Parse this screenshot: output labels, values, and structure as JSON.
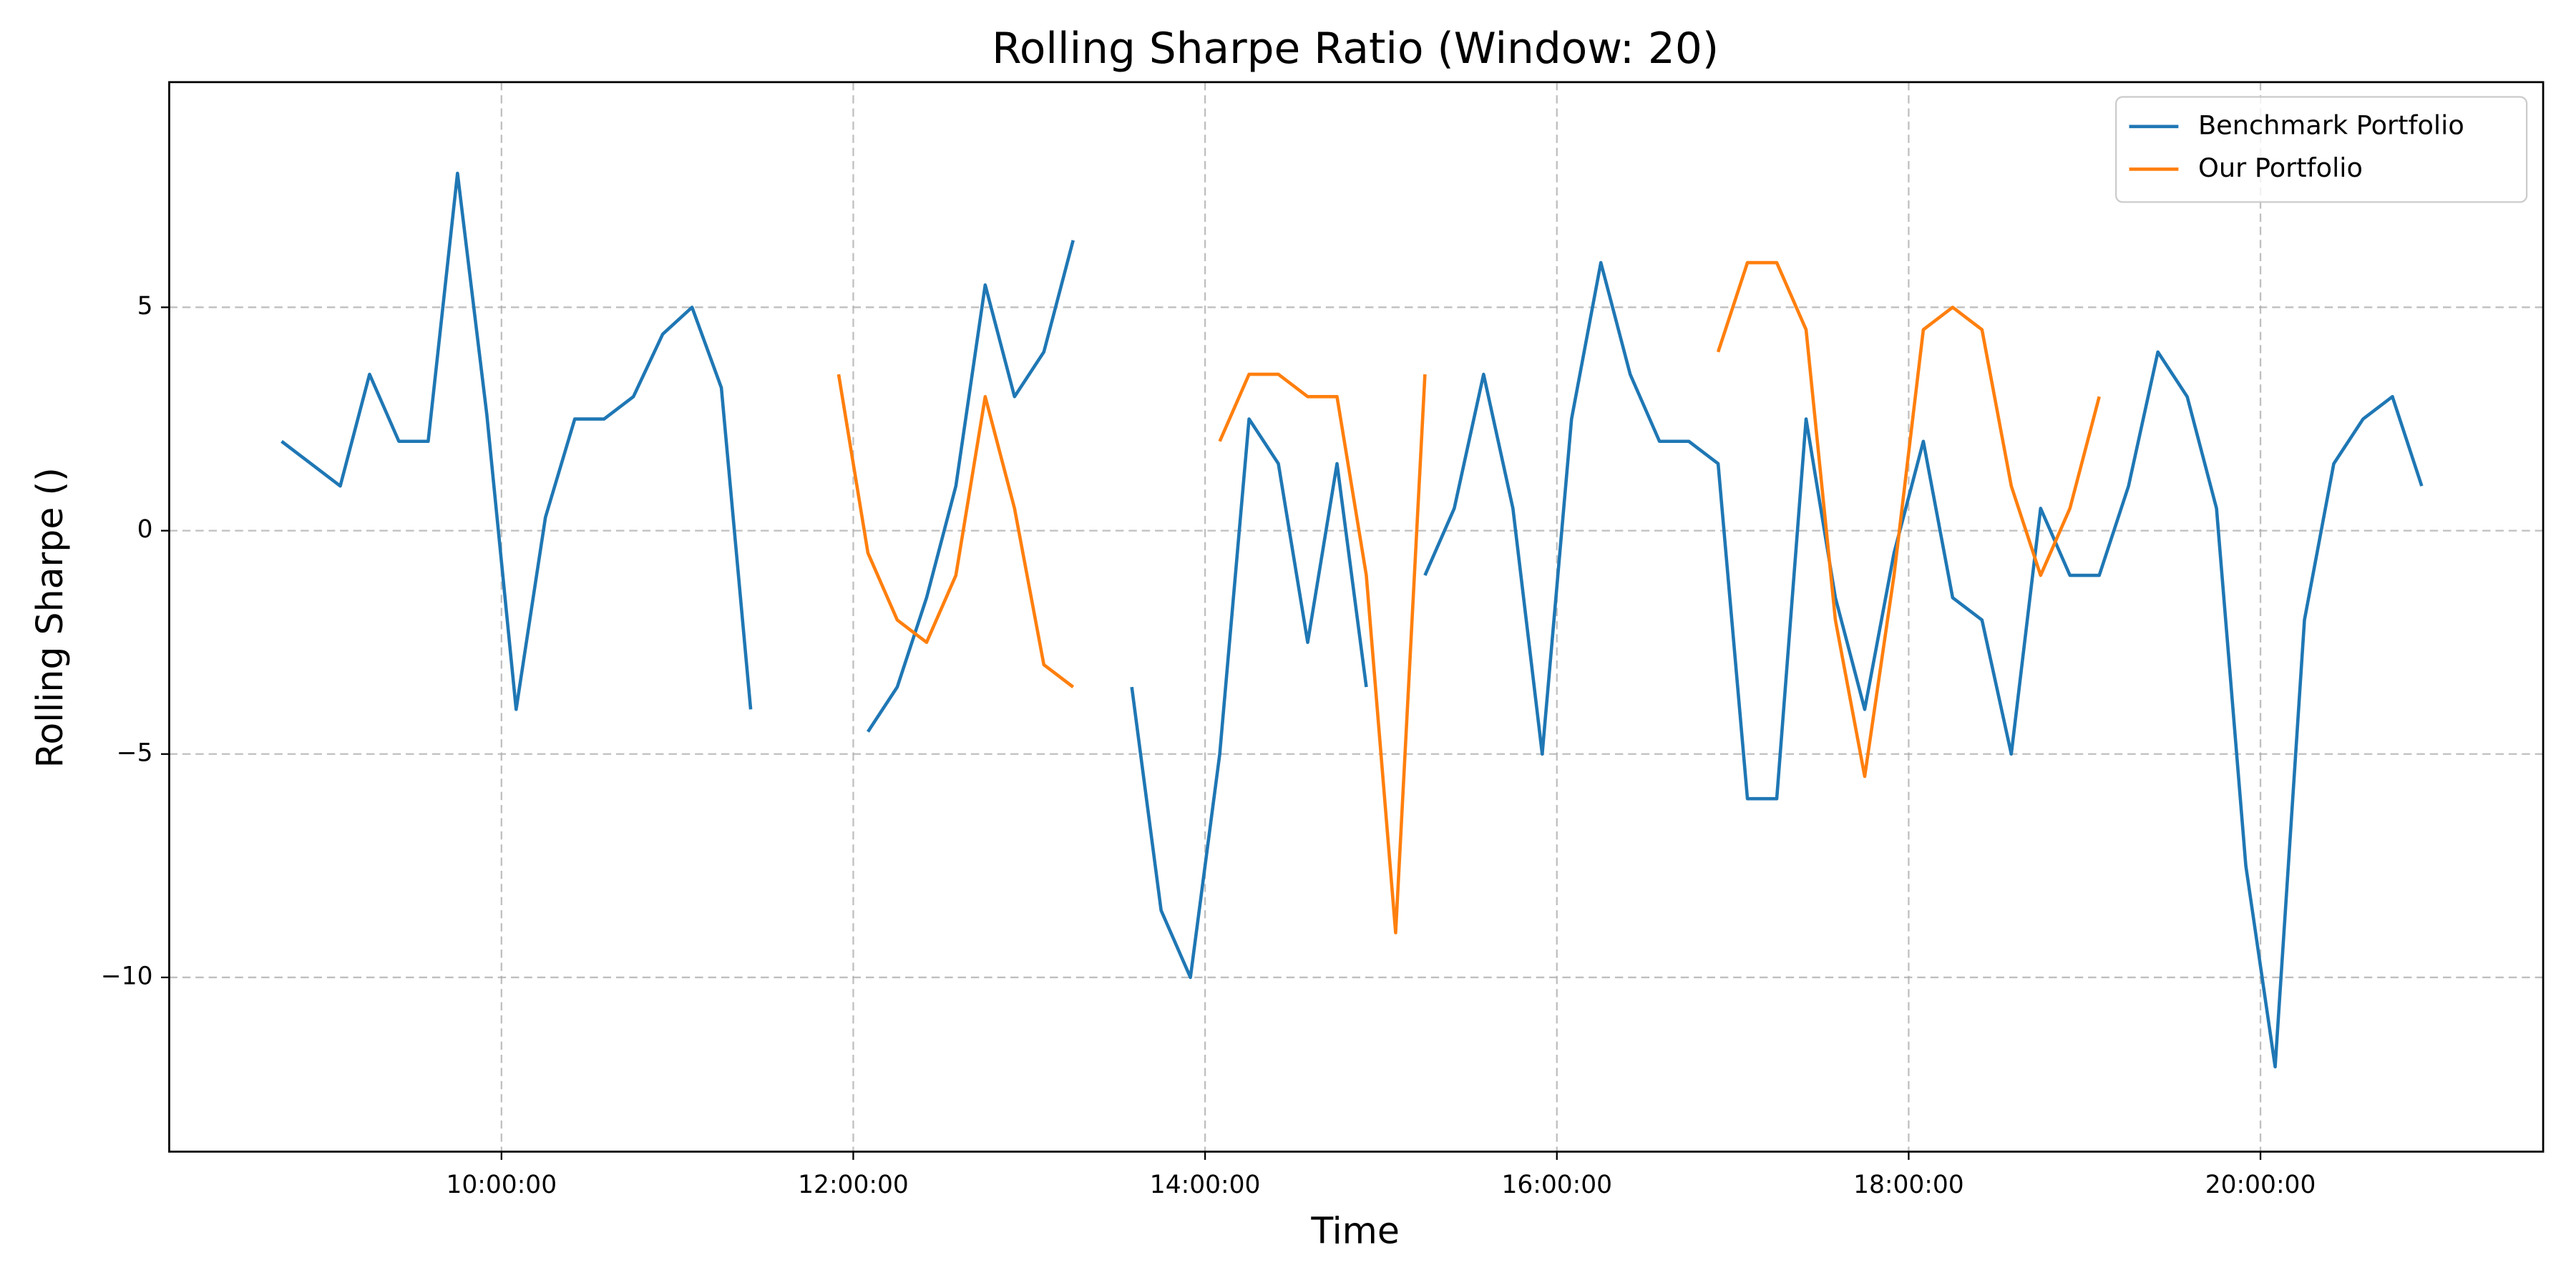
{
  "chart_data": {
    "type": "line",
    "title": "Rolling Sharpe Ratio (Window: 20)",
    "x_label": "Time",
    "y_label": "Rolling Sharpe ()",
    "x": [
      "08:45:00",
      "08:55:00",
      "09:05:00",
      "09:15:00",
      "09:25:00",
      "09:35:00",
      "09:45:00",
      "09:55:00",
      "10:05:00",
      "10:15:00",
      "10:25:00",
      "10:35:00",
      "10:45:00",
      "10:55:00",
      "11:05:00",
      "11:15:00",
      "11:25:00",
      "11:35:00",
      "11:45:00",
      "11:55:00",
      "12:05:00",
      "12:15:00",
      "12:25:00",
      "12:35:00",
      "12:45:00",
      "12:55:00",
      "13:05:00",
      "13:15:00",
      "13:25:00",
      "13:35:00",
      "13:45:00",
      "13:55:00",
      "14:05:00",
      "14:15:00",
      "14:25:00",
      "14:35:00",
      "14:45:00",
      "14:55:00",
      "15:05:00",
      "15:15:00",
      "15:25:00",
      "15:35:00",
      "15:45:00",
      "15:55:00",
      "16:05:00",
      "16:15:00",
      "16:25:00",
      "16:35:00",
      "16:45:00",
      "16:55:00",
      "17:05:00",
      "17:15:00",
      "17:25:00",
      "17:35:00",
      "17:45:00",
      "17:55:00",
      "18:05:00",
      "18:15:00",
      "18:25:00",
      "18:35:00",
      "18:45:00",
      "18:55:00",
      "19:05:00",
      "19:15:00",
      "19:25:00",
      "19:35:00",
      "19:45:00",
      "19:55:00",
      "20:05:00",
      "20:15:00",
      "20:25:00",
      "20:35:00",
      "20:45:00",
      "20:55:00"
    ],
    "series": [
      {
        "name": "Benchmark Portfolio",
        "color": "#1f77b4",
        "values": [
          2.0,
          1.5,
          1.0,
          3.5,
          2.0,
          2.0,
          8.0,
          2.6,
          -4,
          0.3,
          2.5,
          2.5,
          3.0,
          4.4,
          5.0,
          3.2,
          -4.0,
          null,
          null,
          null,
          -4.5,
          -3.5,
          -1.5,
          1.0,
          5.5,
          3.0,
          4.0,
          6.5,
          null,
          -3.5,
          -8.5,
          -10,
          -5,
          2.5,
          1.5,
          -2.5,
          1.5,
          -3.5,
          null,
          -1.0,
          0.5,
          3.5,
          0.5,
          -5.0,
          2.5,
          6.0,
          3.5,
          2.0,
          2.0,
          1.5,
          -6.0,
          -6.0,
          2.5,
          -1.5,
          -4.0,
          -0.5,
          2.0,
          -1.5,
          -2.0,
          -5.0,
          0.5,
          -1.0,
          -1.0,
          1.0,
          4.0,
          3.0,
          0.5,
          -7.5,
          -12.0,
          -2.0,
          1.5,
          2.5,
          3.0,
          1.0
        ]
      },
      {
        "name": "Our Portfolio",
        "color": "#ff7f0e",
        "values": [
          null,
          null,
          null,
          null,
          null,
          null,
          null,
          null,
          null,
          null,
          null,
          null,
          null,
          null,
          null,
          null,
          null,
          null,
          null,
          3.5,
          -0.5,
          -2.0,
          -2.5,
          -1.0,
          3.0,
          0.5,
          -3.0,
          -3.5,
          null,
          null,
          null,
          null,
          2.0,
          3.5,
          3.5,
          3.0,
          3.0,
          -1.0,
          -9.0,
          3.5,
          null,
          null,
          null,
          null,
          null,
          null,
          null,
          null,
          null,
          4.0,
          6.0,
          6.0,
          4.5,
          -2.0,
          -5.5,
          -1.0,
          4.5,
          5.0,
          4.5,
          1.0,
          -1.0,
          0.5,
          3.0,
          null,
          null,
          null,
          null,
          null,
          null,
          null,
          null,
          null,
          null,
          null
        ]
      }
    ],
    "xlim": [
      "08:06:40",
      "21:36:25"
    ],
    "xticks": [
      "10:00:00",
      "12:00:00",
      "14:00:00",
      "16:00:00",
      "18:00:00",
      "20:00:00"
    ],
    "ylim": [
      -13.9,
      10.04
    ],
    "yticks": [
      {
        "value": -10,
        "label": "−10"
      },
      {
        "value": -5,
        "label": "−5"
      },
      0,
      5
    ],
    "grid": true,
    "legend": "upper right"
  }
}
